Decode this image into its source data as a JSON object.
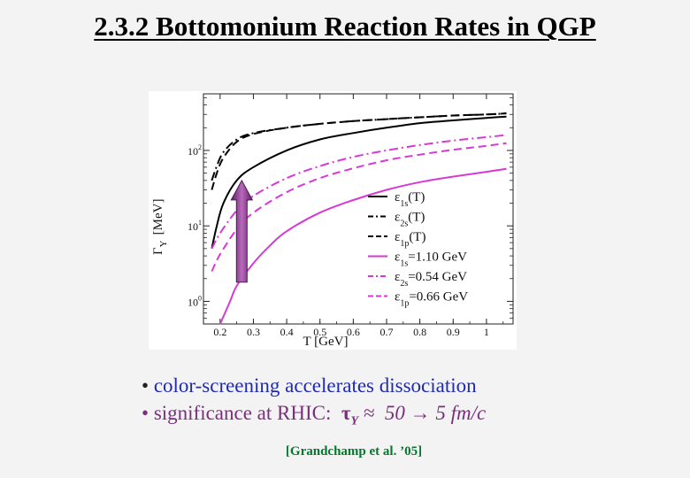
{
  "slide": {
    "title": "2.3.2 Bottomonium Reaction Rates in QGP",
    "bullet1_dot": "•",
    "bullet1_kw": "color",
    "bullet1_rest": "-screening accelerates dissociation",
    "bullet2_dot": "•",
    "bullet2_text": "significance at RHIC:",
    "bullet2_tau": "τ",
    "bullet2_sub": "Y",
    "bullet2_approx": "≈",
    "bullet2_value": "50 → 5 fm/c",
    "citation": "[Grandchamp et al. ’05]"
  },
  "chart_data": {
    "type": "line",
    "xlabel": "T  [GeV]",
    "ylabel_main": "Γ",
    "ylabel_sub": "Y",
    "ylabel_unit": "[MeV]",
    "xlim": [
      0.15,
      1.08
    ],
    "ylim_log10": [
      -0.3,
      2.75
    ],
    "xticks": [
      0.2,
      0.3,
      0.4,
      0.5,
      0.6,
      0.7,
      0.8,
      0.9,
      1
    ],
    "xtick_labels": [
      "0.2",
      "0.3",
      "0.4",
      "0.5",
      "0.6",
      "0.7",
      "0.8",
      "0.9",
      "1"
    ],
    "yticks_log10": [
      0,
      1,
      2
    ],
    "ytick_labels": [
      {
        "base": "10",
        "exp": "0"
      },
      {
        "base": "10",
        "exp": "1"
      },
      {
        "base": "10",
        "exp": "2"
      }
    ],
    "series": [
      {
        "name": "ε1s(T)",
        "main": "ε",
        "sub": "1s",
        "tail": "(T)",
        "color": "#000000",
        "dash": "solid",
        "x": [
          0.175,
          0.19,
          0.21,
          0.25,
          0.3,
          0.4,
          0.5,
          0.6,
          0.7,
          0.8,
          0.9,
          1.0,
          1.06
        ],
        "y": [
          5,
          10,
          20,
          40,
          60,
          100,
          140,
          170,
          200,
          230,
          250,
          270,
          280
        ]
      },
      {
        "name": "ε2s(T)",
        "main": "ε",
        "sub": "2s",
        "tail": "(T)",
        "color": "#000000",
        "dash": "dashdot",
        "x": [
          0.175,
          0.19,
          0.21,
          0.25,
          0.3,
          0.4,
          0.5,
          0.6,
          0.7,
          0.8,
          0.9,
          1.0,
          1.06
        ],
        "y": [
          40,
          62,
          95,
          140,
          170,
          200,
          225,
          245,
          260,
          275,
          290,
          300,
          310
        ]
      },
      {
        "name": "ε1p(T)",
        "main": "ε",
        "sub": "1p",
        "tail": "(T)",
        "color": "#000000",
        "dash": "dashed",
        "x": [
          0.175,
          0.19,
          0.21,
          0.25,
          0.3,
          0.4,
          0.5,
          0.6,
          0.7,
          0.8,
          0.9,
          1.0,
          1.06
        ],
        "y": [
          30,
          50,
          80,
          130,
          165,
          200,
          225,
          245,
          260,
          275,
          290,
          300,
          310
        ]
      },
      {
        "name": "ε1s=1.10 GeV",
        "main": "ε",
        "sub": "1s",
        "tail": "=1.10 GeV",
        "color": "#d63ad6",
        "dash": "solid",
        "x": [
          0.2,
          0.23,
          0.25,
          0.3,
          0.35,
          0.4,
          0.5,
          0.6,
          0.7,
          0.8,
          0.9,
          1.0,
          1.06
        ],
        "y": [
          0.5,
          1.0,
          1.6,
          3.2,
          5.5,
          8.5,
          15,
          22,
          30,
          38,
          45,
          52,
          57
        ]
      },
      {
        "name": "ε2s=0.54 GeV",
        "main": "ε",
        "sub": "2s",
        "tail": "=0.54 GeV",
        "color": "#d63ad6",
        "dash": "dashdot",
        "x": [
          0.175,
          0.2,
          0.25,
          0.3,
          0.4,
          0.5,
          0.6,
          0.7,
          0.8,
          0.9,
          1.0,
          1.06
        ],
        "y": [
          5,
          8,
          16,
          25,
          43,
          62,
          82,
          100,
          118,
          135,
          150,
          160
        ]
      },
      {
        "name": "ε1p=0.66 GeV",
        "main": "ε",
        "sub": "1p",
        "tail": "=0.66 GeV",
        "color": "#d63ad6",
        "dash": "dashed",
        "x": [
          0.175,
          0.2,
          0.25,
          0.3,
          0.4,
          0.5,
          0.6,
          0.7,
          0.8,
          0.9,
          1.0,
          1.06
        ],
        "y": [
          2.5,
          4.2,
          9,
          15,
          28,
          43,
          58,
          74,
          88,
          102,
          115,
          125
        ]
      }
    ],
    "arrow": {
      "x": 0.265,
      "y_from": 1.8,
      "y_to": 40,
      "color": "#8a3a90"
    }
  }
}
